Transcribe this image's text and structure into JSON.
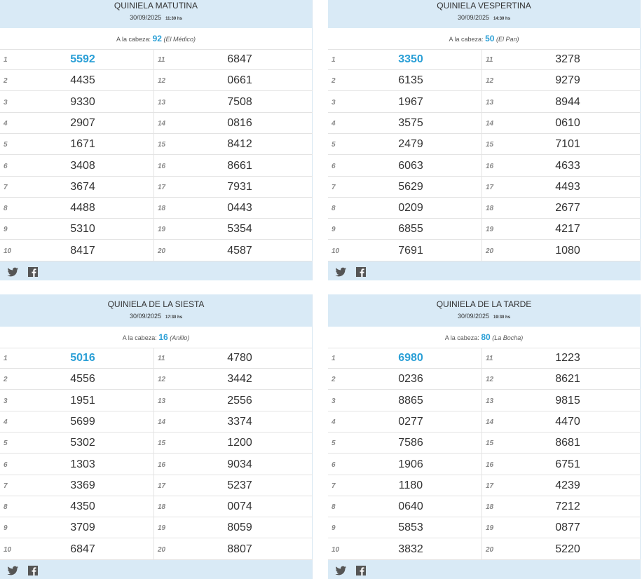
{
  "panels": [
    {
      "title": "QUINIELA MATUTINA",
      "date": "30/09/2025",
      "time": "11:30 hs",
      "cabeza_label": "A la cabeza:",
      "cabeza_number": "92",
      "cabeza_name": "(El Médico)",
      "results": [
        {
          "position": "1",
          "number": "5592"
        },
        {
          "position": "2",
          "number": "4435"
        },
        {
          "position": "3",
          "number": "9330"
        },
        {
          "position": "4",
          "number": "2907"
        },
        {
          "position": "5",
          "number": "1671"
        },
        {
          "position": "6",
          "number": "3408"
        },
        {
          "position": "7",
          "number": "3674"
        },
        {
          "position": "8",
          "number": "4488"
        },
        {
          "position": "9",
          "number": "5310"
        },
        {
          "position": "10",
          "number": "8417"
        },
        {
          "position": "11",
          "number": "6847"
        },
        {
          "position": "12",
          "number": "0661"
        },
        {
          "position": "13",
          "number": "7508"
        },
        {
          "position": "14",
          "number": "0816"
        },
        {
          "position": "15",
          "number": "8412"
        },
        {
          "position": "16",
          "number": "8661"
        },
        {
          "position": "17",
          "number": "7931"
        },
        {
          "position": "18",
          "number": "0443"
        },
        {
          "position": "19",
          "number": "5354"
        },
        {
          "position": "20",
          "number": "4587"
        }
      ]
    },
    {
      "title": "QUINIELA VESPERTINA",
      "date": "30/09/2025",
      "time": "14:30 hs",
      "cabeza_label": "A la cabeza:",
      "cabeza_number": "50",
      "cabeza_name": "(El Pan)",
      "results": [
        {
          "position": "1",
          "number": "3350"
        },
        {
          "position": "2",
          "number": "6135"
        },
        {
          "position": "3",
          "number": "1967"
        },
        {
          "position": "4",
          "number": "3575"
        },
        {
          "position": "5",
          "number": "2479"
        },
        {
          "position": "6",
          "number": "6063"
        },
        {
          "position": "7",
          "number": "5629"
        },
        {
          "position": "8",
          "number": "0209"
        },
        {
          "position": "9",
          "number": "6855"
        },
        {
          "position": "10",
          "number": "7691"
        },
        {
          "position": "11",
          "number": "3278"
        },
        {
          "position": "12",
          "number": "9279"
        },
        {
          "position": "13",
          "number": "8944"
        },
        {
          "position": "14",
          "number": "0610"
        },
        {
          "position": "15",
          "number": "7101"
        },
        {
          "position": "16",
          "number": "4633"
        },
        {
          "position": "17",
          "number": "4493"
        },
        {
          "position": "18",
          "number": "2677"
        },
        {
          "position": "19",
          "number": "4217"
        },
        {
          "position": "20",
          "number": "1080"
        }
      ]
    },
    {
      "title": "QUINIELA DE LA SIESTA",
      "date": "30/09/2025",
      "time": "17:30 hs",
      "cabeza_label": "A la cabeza:",
      "cabeza_number": "16",
      "cabeza_name": "(Anillo)",
      "results": [
        {
          "position": "1",
          "number": "5016"
        },
        {
          "position": "2",
          "number": "4556"
        },
        {
          "position": "3",
          "number": "1951"
        },
        {
          "position": "4",
          "number": "5699"
        },
        {
          "position": "5",
          "number": "5302"
        },
        {
          "position": "6",
          "number": "1303"
        },
        {
          "position": "7",
          "number": "3369"
        },
        {
          "position": "8",
          "number": "4350"
        },
        {
          "position": "9",
          "number": "3709"
        },
        {
          "position": "10",
          "number": "6847"
        },
        {
          "position": "11",
          "number": "4780"
        },
        {
          "position": "12",
          "number": "3442"
        },
        {
          "position": "13",
          "number": "2556"
        },
        {
          "position": "14",
          "number": "3374"
        },
        {
          "position": "15",
          "number": "1200"
        },
        {
          "position": "16",
          "number": "9034"
        },
        {
          "position": "17",
          "number": "5237"
        },
        {
          "position": "18",
          "number": "0074"
        },
        {
          "position": "19",
          "number": "8059"
        },
        {
          "position": "20",
          "number": "8807"
        }
      ]
    },
    {
      "title": "QUINIELA DE LA TARDE",
      "date": "30/09/2025",
      "time": "19:30 hs",
      "cabeza_label": "A la cabeza:",
      "cabeza_number": "80",
      "cabeza_name": "(La Bocha)",
      "results": [
        {
          "position": "1",
          "number": "6980"
        },
        {
          "position": "2",
          "number": "0236"
        },
        {
          "position": "3",
          "number": "8865"
        },
        {
          "position": "4",
          "number": "0277"
        },
        {
          "position": "5",
          "number": "7586"
        },
        {
          "position": "6",
          "number": "1906"
        },
        {
          "position": "7",
          "number": "1180"
        },
        {
          "position": "8",
          "number": "0640"
        },
        {
          "position": "9",
          "number": "5853"
        },
        {
          "position": "10",
          "number": "3832"
        },
        {
          "position": "11",
          "number": "1223"
        },
        {
          "position": "12",
          "number": "8621"
        },
        {
          "position": "13",
          "number": "9815"
        },
        {
          "position": "14",
          "number": "4470"
        },
        {
          "position": "15",
          "number": "8681"
        },
        {
          "position": "16",
          "number": "6751"
        },
        {
          "position": "17",
          "number": "4239"
        },
        {
          "position": "18",
          "number": "7212"
        },
        {
          "position": "19",
          "number": "0877"
        },
        {
          "position": "20",
          "number": "5220"
        }
      ]
    }
  ]
}
